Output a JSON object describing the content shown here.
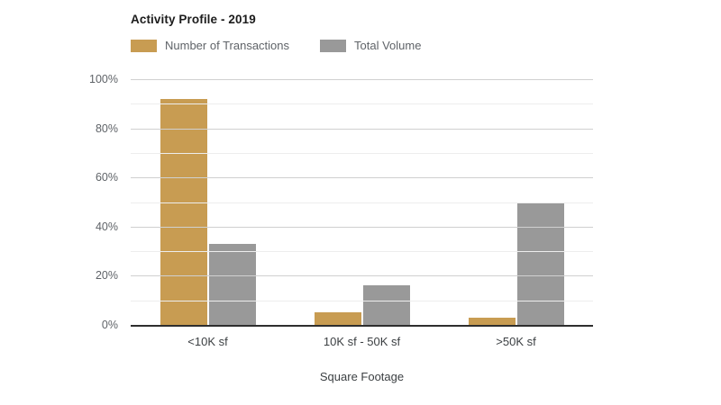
{
  "title": "Activity Profile - 2019",
  "chart_data": {
    "type": "bar",
    "title": "Activity Profile - 2019",
    "categories": [
      "<10K sf",
      "10K sf - 50K sf",
      ">50K sf"
    ],
    "series": [
      {
        "name": "Number of Transactions",
        "color": "#C89C52",
        "values": [
          92,
          5,
          3
        ]
      },
      {
        "name": "Total Volume",
        "color": "#999999",
        "values": [
          33,
          16,
          50
        ]
      }
    ],
    "xlabel": "Square Footage",
    "ylabel": "",
    "ylim": [
      0,
      100
    ],
    "yticks": [
      0,
      20,
      40,
      60,
      80,
      100
    ],
    "ytick_suffix": "%",
    "minor_grid_step": 10,
    "grid": true,
    "legend_position": "top-left"
  },
  "colors": {
    "background": "#ffffff",
    "major_gridline": "#d0d0d0",
    "minor_gridline": "#ededed",
    "baseline": "#2e2e2e",
    "tick_label": "#5f6368",
    "category_label": "#3c4043",
    "title_text": "#1c1c1c"
  }
}
